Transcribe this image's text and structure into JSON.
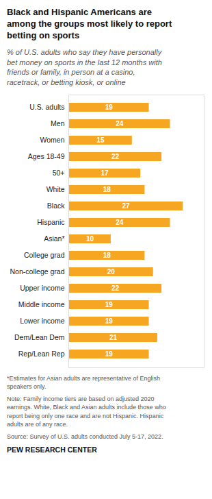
{
  "chart_data": {
    "type": "bar",
    "orientation": "horizontal",
    "title": "Black and Hispanic Americans are\namong the groups most likely to report\nbetting on sports",
    "subtitle": "% of U.S. adults who say they have personally\nbet money on sports in the last 12 months with\nfriends or family, in person at a casino,\nracetrack, or betting kiosk, or online",
    "categories": [
      "U.S. adults",
      "Men",
      "Women",
      "Ages 18-49",
      "50+",
      "White",
      "Black",
      "Hispanic",
      "Asian*",
      "College grad",
      "Non-college grad",
      "Upper income",
      "Middle income",
      "Lower income",
      "Dem/Lean Dem",
      "Rep/Lean Rep"
    ],
    "values": [
      19,
      24,
      15,
      22,
      17,
      18,
      27,
      24,
      10,
      18,
      20,
      22,
      19,
      19,
      21,
      19
    ],
    "color": "#F5A623",
    "xlim": [
      0,
      32
    ],
    "data_labels": true,
    "tick_labels": "y",
    "grid": false,
    "annotations": [
      "*Estimates for Asian adults are representative of English\nspeakers only.",
      "Note: Family income tiers are based on adjusted 2020\nearnings. White, Black and Asian adults include those who\nreport being only one race and are not Hispanic. Hispanic\nadults are of any race.",
      "Source: Survey of U.S. adults conducted July 5-17, 2022.",
      "PEW RESEARCH CENTER"
    ]
  }
}
